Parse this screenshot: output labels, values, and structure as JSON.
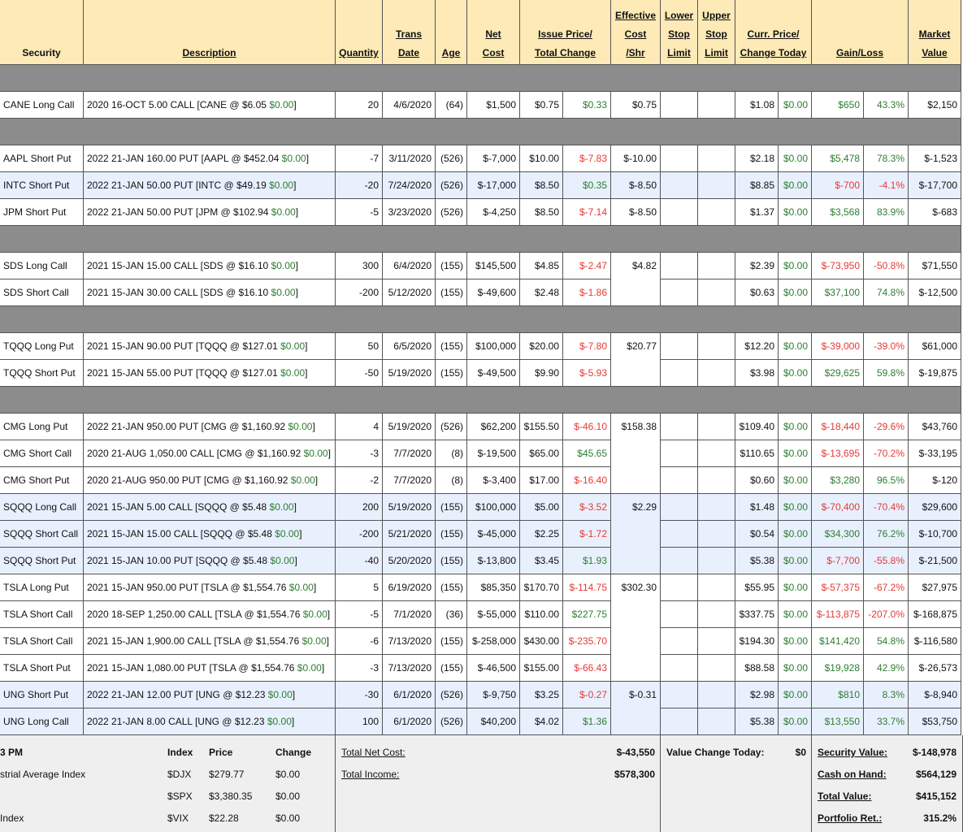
{
  "header": [
    {
      "lines": [
        "Security"
      ]
    },
    {
      "lines": [
        "Description"
      ]
    },
    {
      "lines": [
        "Quantity"
      ]
    },
    {
      "lines": [
        "Trans",
        "Date"
      ]
    },
    {
      "lines": [
        "Age"
      ]
    },
    {
      "lines": [
        "Net",
        "Cost"
      ]
    },
    {
      "lines": [
        "Issue Price/",
        "Total Change"
      ]
    },
    {
      "lines": [
        "Effective",
        "Cost",
        "/Shr"
      ]
    },
    {
      "lines": [
        "Lower",
        "Stop",
        "Limit"
      ]
    },
    {
      "lines": [
        "Upper",
        "Stop",
        "Limit"
      ]
    },
    {
      "lines": [
        "Curr. Price/",
        "Change Today"
      ]
    },
    {
      "lines": [
        "Gain/Loss"
      ]
    },
    {
      "lines": [
        "Market",
        "Value"
      ]
    }
  ],
  "sections": [
    {
      "blocks": [
        {
          "effective_cost": "$0.75",
          "rows": [
            {
              "security": "CANE Long Call",
              "description": [
                "2020 16-OCT 5.00 CALL [CANE @ $6.05 ",
                "$0.00",
                "]"
              ],
              "cells": [
                "20",
                "4/6/2020",
                "(64)",
                "$1,500",
                "$0.75",
                "$0.33",
                "$1.08",
                "$0.00",
                "$650",
                "43.3%",
                "$2,150"
              ]
            }
          ]
        }
      ]
    },
    {
      "blocks": [
        {
          "effective_cost": "$-10.00",
          "rows": [
            {
              "security": "AAPL Short Put",
              "description": [
                "2022 21-JAN 160.00 PUT [AAPL @ $452.04 ",
                "$0.00",
                "]"
              ],
              "cells": [
                "-7",
                "3/11/2020",
                "(526)",
                "$-7,000",
                "$10.00",
                "$-7.83",
                "$2.18",
                "$0.00",
                "$5,478",
                "78.3%",
                "$-1,523"
              ]
            }
          ]
        },
        {
          "effective_cost": "$-8.50",
          "highlight": true,
          "rows": [
            {
              "security": "INTC Short Put",
              "description": [
                "2022 21-JAN 50.00 PUT [INTC @ $49.19 ",
                "$0.00",
                "]"
              ],
              "cells": [
                "-20",
                "7/24/2020",
                "(526)",
                "$-17,000",
                "$8.50",
                "$0.35",
                "$8.85",
                "$0.00",
                "$-700",
                "-4.1%",
                "$-17,700"
              ]
            }
          ]
        },
        {
          "effective_cost": "$-8.50",
          "rows": [
            {
              "security": "JPM Short Put",
              "description": [
                "2022 21-JAN 50.00 PUT [JPM @ $102.94 ",
                "$0.00",
                "]"
              ],
              "cells": [
                "-5",
                "3/23/2020",
                "(526)",
                "$-4,250",
                "$8.50",
                "$-7.14",
                "$1.37",
                "$0.00",
                "$3,568",
                "83.9%",
                "$-683"
              ]
            }
          ]
        }
      ]
    },
    {
      "blocks": [
        {
          "effective_cost": "$4.82",
          "rows": [
            {
              "security": "SDS Long Call",
              "description": [
                "2021 15-JAN 15.00 CALL [SDS @ $16.10 ",
                "$0.00",
                "]"
              ],
              "cells": [
                "300",
                "6/4/2020",
                "(155)",
                "$145,500",
                "$4.85",
                "$-2.47",
                "$2.39",
                "$0.00",
                "$-73,950",
                "-50.8%",
                "$71,550"
              ]
            },
            {
              "security": "SDS Short Call",
              "description": [
                "2021 15-JAN 30.00 CALL [SDS @ $16.10 ",
                "$0.00",
                "]"
              ],
              "cells": [
                "-200",
                "5/12/2020",
                "(155)",
                "$-49,600",
                "$2.48",
                "$-1.86",
                "$0.63",
                "$0.00",
                "$37,100",
                "74.8%",
                "$-12,500"
              ]
            }
          ]
        }
      ]
    },
    {
      "blocks": [
        {
          "effective_cost": "$20.77",
          "rows": [
            {
              "security": "TQQQ Long Put",
              "description": [
                "2021 15-JAN 90.00 PUT [TQQQ @ $127.01 ",
                "$0.00",
                "]"
              ],
              "cells": [
                "50",
                "6/5/2020",
                "(155)",
                "$100,000",
                "$20.00",
                "$-7.80",
                "$12.20",
                "$0.00",
                "$-39,000",
                "-39.0%",
                "$61,000"
              ]
            },
            {
              "security": "TQQQ Short Put",
              "description": [
                "2021 15-JAN 55.00 PUT [TQQQ @ $127.01 ",
                "$0.00",
                "]"
              ],
              "cells": [
                "-50",
                "5/19/2020",
                "(155)",
                "$-49,500",
                "$9.90",
                "$-5.93",
                "$3.98",
                "$0.00",
                "$29,625",
                "59.8%",
                "$-19,875"
              ]
            }
          ]
        }
      ]
    },
    {
      "blocks": [
        {
          "effective_cost": "$158.38",
          "rows": [
            {
              "security": "CMG Long Put",
              "description": [
                "2022 21-JAN 950.00 PUT [CMG @ $1,160.92 ",
                "$0.00",
                "]"
              ],
              "cells": [
                "4",
                "5/19/2020",
                "(526)",
                "$62,200",
                "$155.50",
                "$-46.10",
                "$109.40",
                "$0.00",
                "$-18,440",
                "-29.6%",
                "$43,760"
              ]
            },
            {
              "security": "CMG Short Call",
              "description": [
                "2020 21-AUG 1,050.00 CALL [CMG @ $1,160.92 ",
                "$0.00",
                "]"
              ],
              "cells": [
                "-3",
                "7/7/2020",
                "(8)",
                "$-19,500",
                "$65.00",
                "$45.65",
                "$110.65",
                "$0.00",
                "$-13,695",
                "-70.2%",
                "$-33,195"
              ]
            },
            {
              "security": "CMG Short Put",
              "description": [
                "2020 21-AUG 950.00 PUT [CMG @ $1,160.92 ",
                "$0.00",
                "]"
              ],
              "cells": [
                "-2",
                "7/7/2020",
                "(8)",
                "$-3,400",
                "$17.00",
                "$-16.40",
                "$0.60",
                "$0.00",
                "$3,280",
                "96.5%",
                "$-120"
              ]
            }
          ]
        },
        {
          "effective_cost": "$2.29",
          "highlight": true,
          "rows": [
            {
              "security": "SQQQ Long Call",
              "description": [
                "2021 15-JAN 5.00 CALL [SQQQ @ $5.48 ",
                "$0.00",
                "]"
              ],
              "cells": [
                "200",
                "5/19/2020",
                "(155)",
                "$100,000",
                "$5.00",
                "$-3.52",
                "$1.48",
                "$0.00",
                "$-70,400",
                "-70.4%",
                "$29,600"
              ]
            },
            {
              "security": "SQQQ Short Call",
              "description": [
                "2021 15-JAN 15.00 CALL [SQQQ @ $5.48 ",
                "$0.00",
                "]"
              ],
              "cells": [
                "-200",
                "5/21/2020",
                "(155)",
                "$-45,000",
                "$2.25",
                "$-1.72",
                "$0.54",
                "$0.00",
                "$34,300",
                "76.2%",
                "$-10,700"
              ]
            },
            {
              "security": "SQQQ Short Put",
              "description": [
                "2021 15-JAN 10.00 PUT [SQQQ @ $5.48 ",
                "$0.00",
                "]"
              ],
              "cells": [
                "-40",
                "5/20/2020",
                "(155)",
                "$-13,800",
                "$3.45",
                "$1.93",
                "$5.38",
                "$0.00",
                "$-7,700",
                "-55.8%",
                "$-21,500"
              ]
            }
          ]
        },
        {
          "effective_cost": "$302.30",
          "rows": [
            {
              "security": "TSLA Long Put",
              "description": [
                "2021 15-JAN 950.00 PUT [TSLA @ $1,554.76 ",
                "$0.00",
                "]"
              ],
              "cells": [
                "5",
                "6/19/2020",
                "(155)",
                "$85,350",
                "$170.70",
                "$-114.75",
                "$55.95",
                "$0.00",
                "$-57,375",
                "-67.2%",
                "$27,975"
              ]
            },
            {
              "security": "TSLA Short Call",
              "description": [
                "2020 18-SEP 1,250.00 CALL [TSLA @ $1,554.76 ",
                "$0.00",
                "]"
              ],
              "cells": [
                "-5",
                "7/1/2020",
                "(36)",
                "$-55,000",
                "$110.00",
                "$227.75",
                "$337.75",
                "$0.00",
                "$-113,875",
                "-207.0%",
                "$-168,875"
              ]
            },
            {
              "security": "TSLA Short Call",
              "description": [
                "2021 15-JAN 1,900.00 CALL [TSLA @ $1,554.76 ",
                "$0.00",
                "]"
              ],
              "cells": [
                "-6",
                "7/13/2020",
                "(155)",
                "$-258,000",
                "$430.00",
                "$-235.70",
                "$194.30",
                "$0.00",
                "$141,420",
                "54.8%",
                "$-116,580"
              ]
            },
            {
              "security": "TSLA Short Put",
              "description": [
                "2021 15-JAN 1,080.00 PUT [TSLA @ $1,554.76 ",
                "$0.00",
                "]"
              ],
              "cells": [
                "-3",
                "7/13/2020",
                "(155)",
                "$-46,500",
                "$155.00",
                "$-66.43",
                "$88.58",
                "$0.00",
                "$19,928",
                "42.9%",
                "$-26,573"
              ]
            }
          ]
        },
        {
          "effective_cost": "$-0.31",
          "highlight": true,
          "rows": [
            {
              "security": "UNG Short Put",
              "description": [
                "2022 21-JAN 12.00 PUT [UNG @ $12.23 ",
                "$0.00",
                "]"
              ],
              "cells": [
                "-30",
                "6/1/2020",
                "(526)",
                "$-9,750",
                "$3.25",
                "$-0.27",
                "$2.98",
                "$0.00",
                "$810",
                "8.3%",
                "$-8,940"
              ]
            },
            {
              "security": "UNG Long Call",
              "description": [
                "2022 21-JAN 8.00 CALL [UNG @ $12.23 ",
                "$0.00",
                "]"
              ],
              "cells": [
                "100",
                "6/1/2020",
                "(526)",
                "$40,200",
                "$4.02",
                "$1.36",
                "$5.38",
                "$0.00",
                "$13,550",
                "33.7%",
                "$53,750"
              ]
            }
          ]
        }
      ]
    }
  ],
  "footer": {
    "market": {
      "header": [
        "3 PM",
        "Index",
        "Price",
        "Change"
      ],
      "rows": [
        [
          "strial Average Index",
          "$DJX",
          "$279.77",
          "$0.00"
        ],
        [
          null,
          "$SPX",
          "$3,380.35",
          "$0.00"
        ],
        [
          " Index",
          "$VIX",
          "$22.28",
          "$0.00"
        ]
      ]
    },
    "totals": [
      [
        "Total Net Cost:",
        "$-43,550"
      ],
      [
        "Total Income:",
        "$578,300"
      ]
    ],
    "today": [
      "Value Change Today:",
      "$0"
    ],
    "summary": [
      [
        "Security Value:",
        "$-148,978"
      ],
      [
        "Cash on Hand:",
        "$564,129"
      ],
      [
        "Total Value:",
        "$415,152"
      ],
      [
        "Portfolio Ret.:",
        "315.2%"
      ]
    ]
  }
}
